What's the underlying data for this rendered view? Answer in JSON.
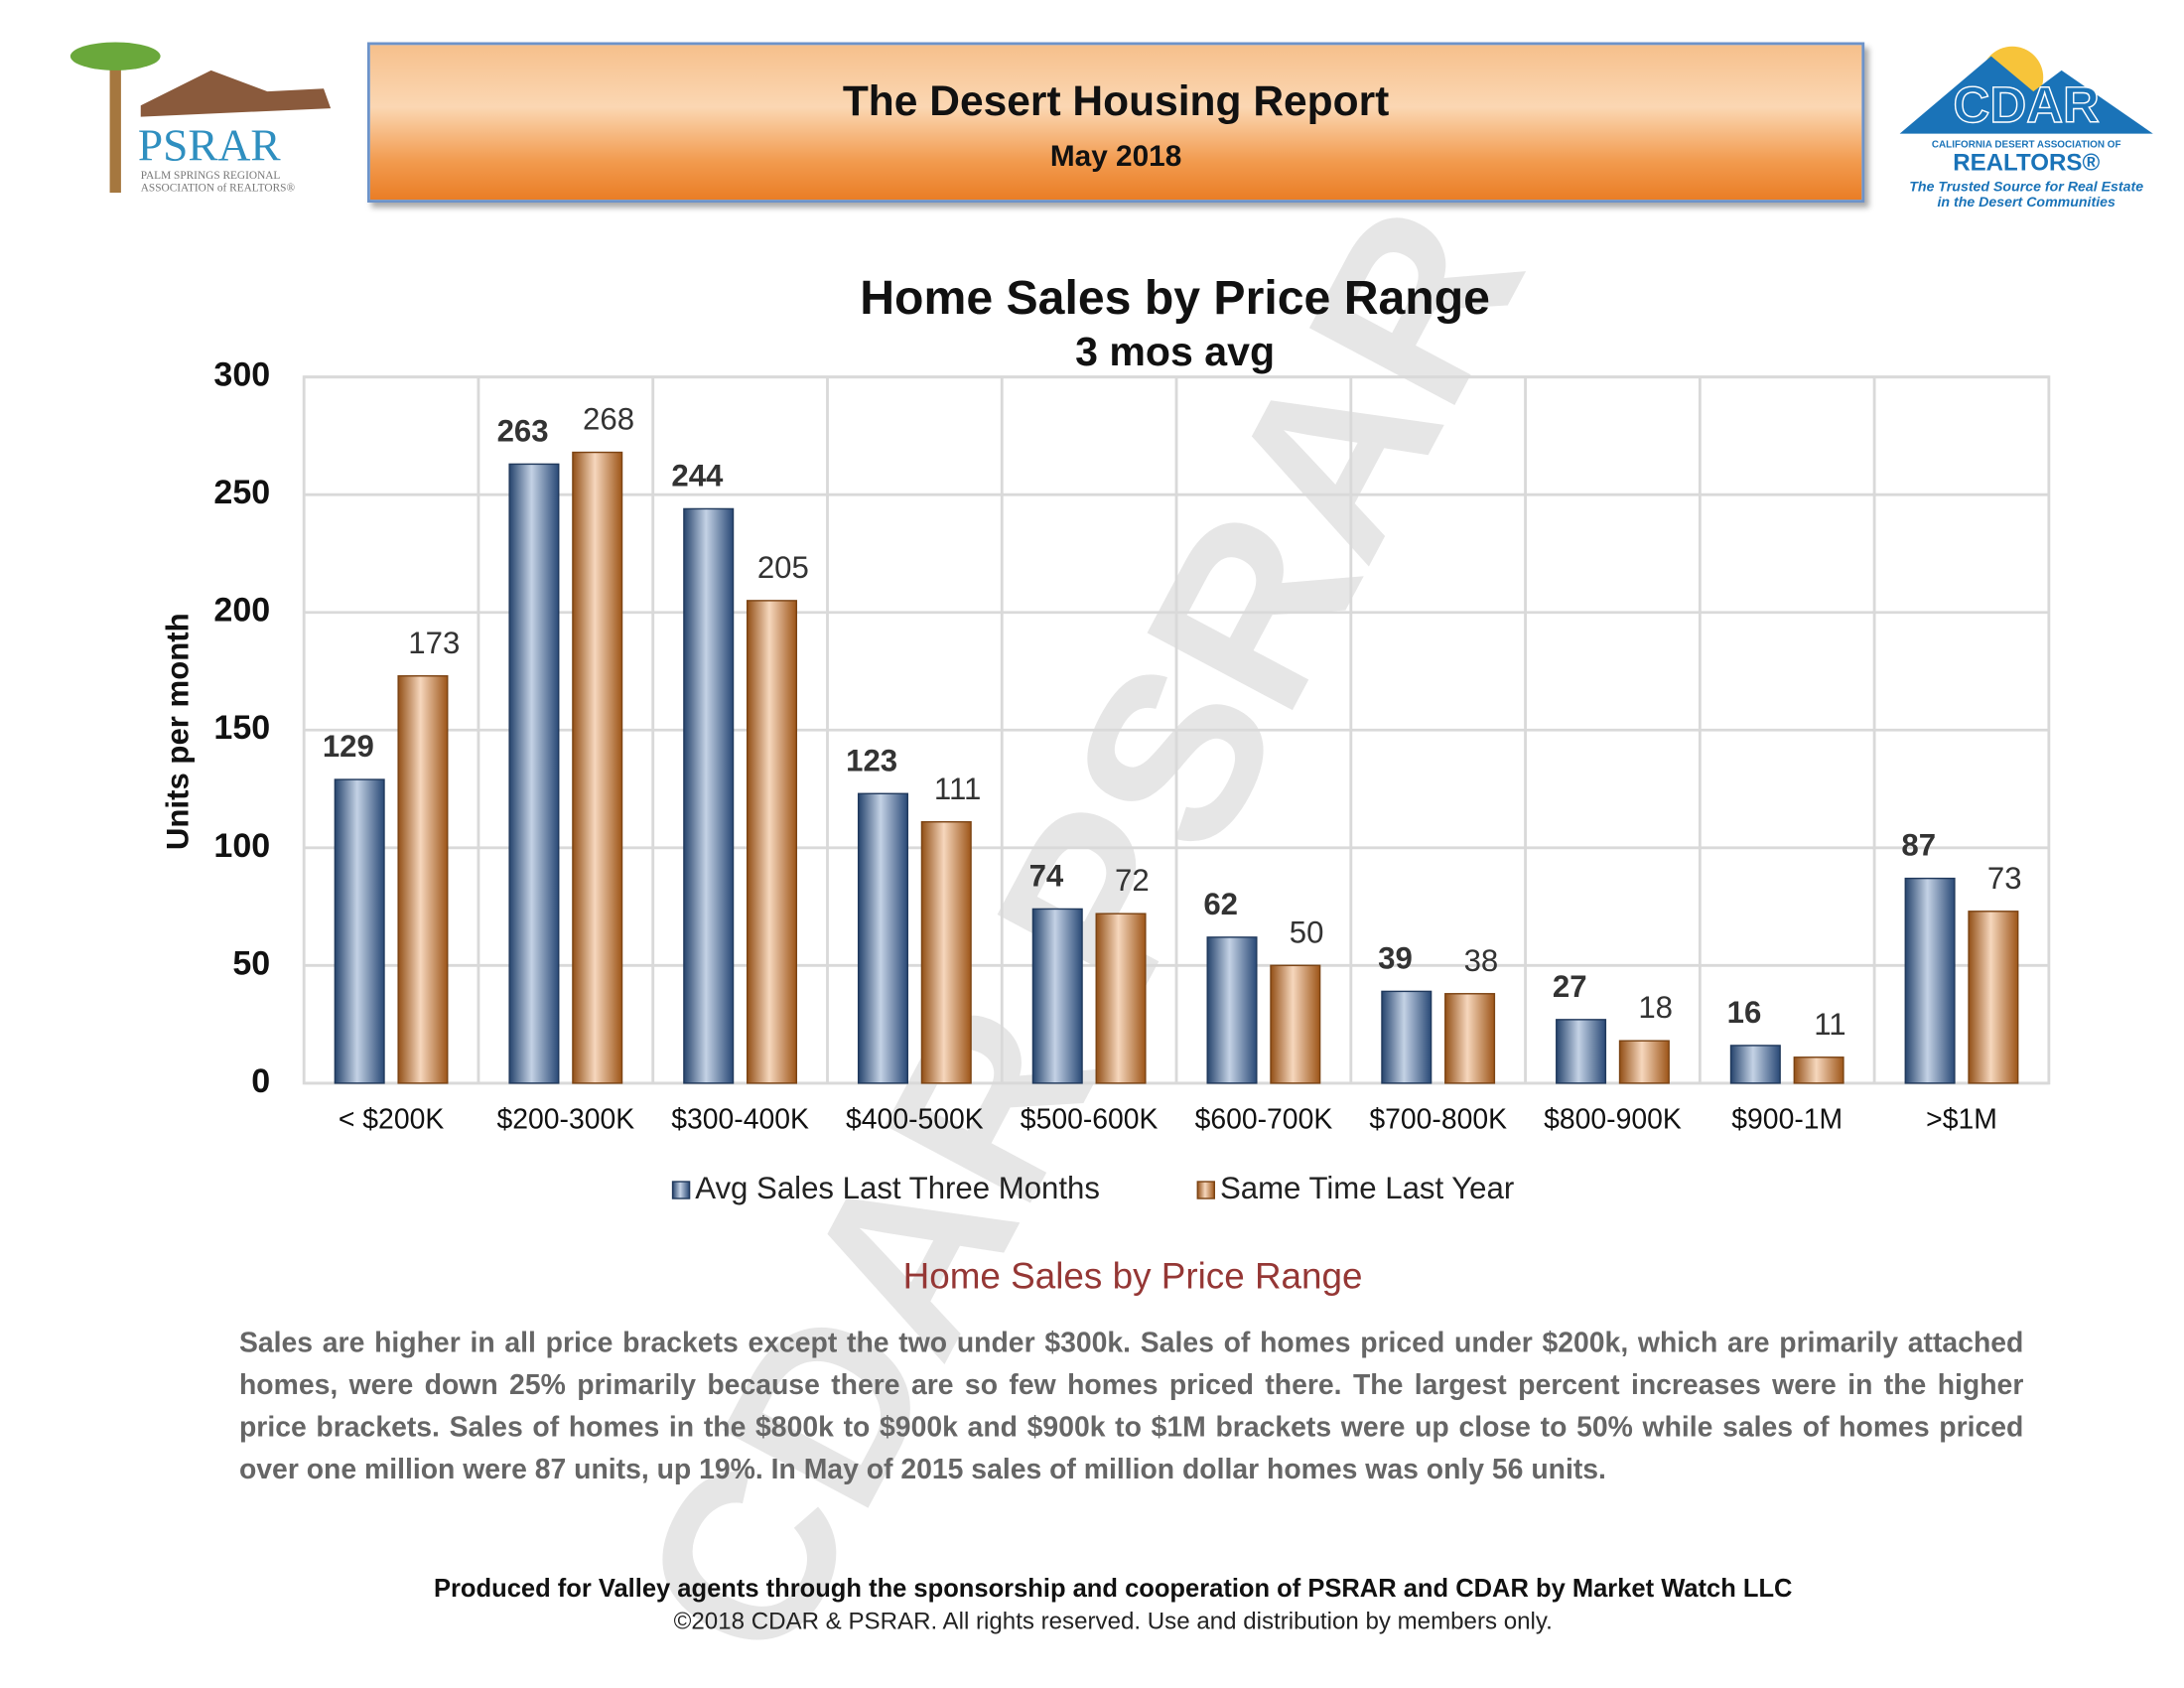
{
  "header": {
    "title": "The Desert Housing Report",
    "date": "May 2018"
  },
  "logos": {
    "psrar": {
      "name": "PSRAR",
      "line1": "PALM SPRINGS REGIONAL",
      "line2": "ASSOCIATION of REALTORS®"
    },
    "cdar": {
      "name": "CDAR",
      "line1": "CALIFORNIA DESERT ASSOCIATION OF",
      "line2": "REALTORS®",
      "tagline1": "The Trusted Source for Real Estate",
      "tagline2": "in the Desert Communities"
    }
  },
  "watermark": "CDAR PSRAR",
  "chart_data": {
    "type": "bar",
    "title": "Home Sales by Price Range",
    "subtitle": "3 mos avg",
    "y_label": "Units per month",
    "categories": [
      "< $200K",
      "$200-300K",
      "$300-400K",
      "$400-500K",
      "$500-600K",
      "$600-700K",
      "$700-800K",
      "$800-900K",
      "$900-1M",
      ">$1M"
    ],
    "series": [
      {
        "name": "Avg Sales Last Three Months",
        "color": "#3a68a8",
        "values": [
          129,
          263,
          244,
          123,
          74,
          62,
          39,
          27,
          16,
          87
        ]
      },
      {
        "name": "Same Time Last Year",
        "color": "#e07a22",
        "values": [
          173,
          268,
          205,
          111,
          72,
          50,
          38,
          18,
          11,
          73
        ]
      }
    ],
    "ylim": [
      0,
      300
    ],
    "yticks": [
      0,
      50,
      100,
      150,
      200,
      250,
      300
    ],
    "grid": true,
    "legend": "bottom"
  },
  "commentary": {
    "heading": "Home Sales by Price Range",
    "body": "Sales are higher in all price brackets except the two under $300k. Sales of homes priced under $200k, which are primarily attached homes, were down 25% primarily because there are so few homes priced there. The largest percent increases were in the higher price brackets. Sales of homes in the $800k to $900k and $900k to $1M brackets were up close to 50% while sales of homes priced over one million were 87 units, up 19%. In May of 2015 sales of million dollar homes was only 56 units."
  },
  "footer": {
    "line1": "Produced for Valley agents through the sponsorship and cooperation of PSRAR and CDAR by Market Watch LLC",
    "line2": "©2018 CDAR & PSRAR.  All rights reserved.  Use and distribution by members only."
  }
}
